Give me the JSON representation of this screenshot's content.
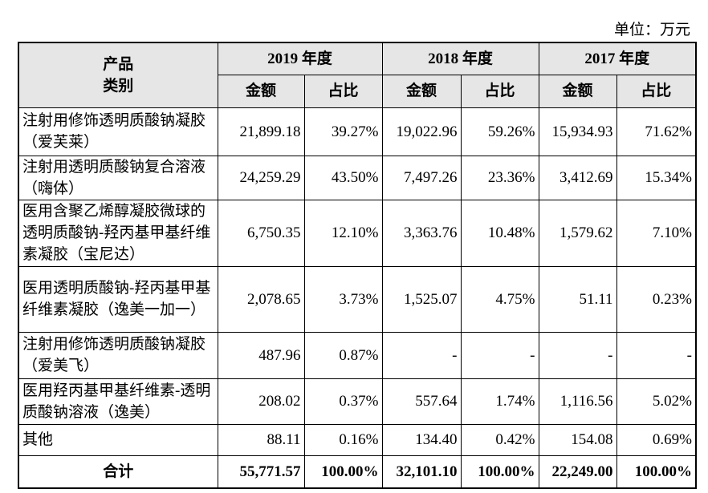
{
  "unit": "单位：万元",
  "table": {
    "header": {
      "category": "产品类别",
      "years": [
        "2019 年度",
        "2018 年度",
        "2017 年度"
      ],
      "sub": [
        "金额",
        "占比"
      ]
    },
    "rows": [
      {
        "name": "注射用修饰透明质酸钠凝胶（爱芙莱）",
        "cells": [
          "21,899.18",
          "39.27%",
          "19,022.96",
          "59.26%",
          "15,934.93",
          "71.62%"
        ]
      },
      {
        "name": "注射用透明质酸钠复合溶液（嗨体）",
        "cells": [
          "24,259.29",
          "43.50%",
          "7,497.26",
          "23.36%",
          "3,412.69",
          "15.34%"
        ]
      },
      {
        "name": "医用含聚乙烯醇凝胶微球的透明质酸钠-羟丙基甲基纤维素凝胶（宝尼达）",
        "cells": [
          "6,750.35",
          "12.10%",
          "3,363.76",
          "10.48%",
          "1,579.62",
          "7.10%"
        ]
      },
      {
        "name": "医用透明质酸钠-羟丙基甲基纤维素凝胶（逸美一加一）",
        "cells": [
          "2,078.65",
          "3.73%",
          "1,525.07",
          "4.75%",
          "51.11",
          "0.23%"
        ]
      },
      {
        "name": "注射用修饰透明质酸钠凝胶（爱美飞）",
        "cells": [
          "487.96",
          "0.87%",
          "-",
          "-",
          "-",
          "-"
        ]
      },
      {
        "name": "医用羟丙基甲基纤维素-透明质酸钠溶液（逸美）",
        "cells": [
          "208.02",
          "0.37%",
          "557.64",
          "1.74%",
          "1,116.56",
          "5.02%"
        ]
      },
      {
        "name": "其他",
        "cells": [
          "88.11",
          "0.16%",
          "134.40",
          "0.42%",
          "154.08",
          "0.69%"
        ]
      }
    ],
    "total": {
      "name": "合计",
      "cells": [
        "55,771.57",
        "100.00%",
        "32,101.10",
        "100.00%",
        "22,249.00",
        "100.00%"
      ]
    }
  }
}
